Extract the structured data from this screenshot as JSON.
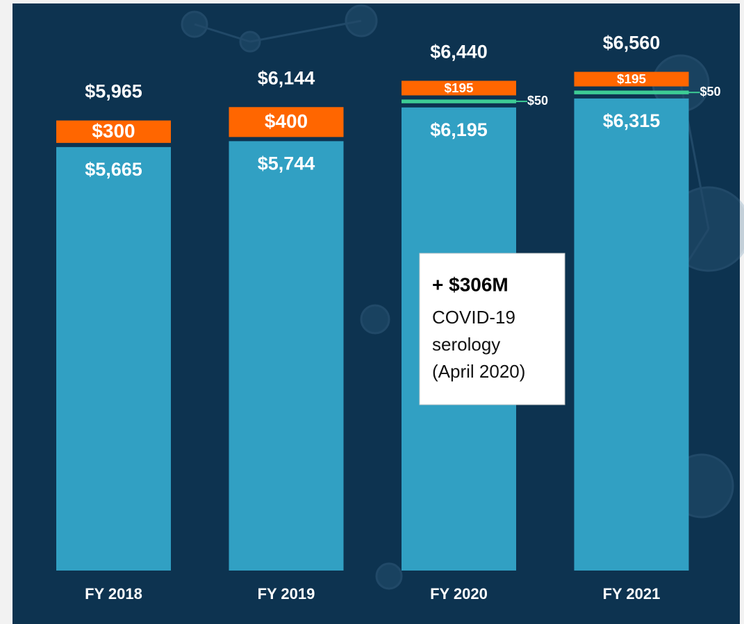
{
  "chart_data": {
    "type": "stacked-bar",
    "categories": [
      "FY 2018",
      "FY 2019",
      "FY 2020",
      "FY 2021"
    ],
    "series": [
      {
        "color": "#31a0c3",
        "values": [
          5665,
          5744,
          6195,
          6315
        ],
        "value_labels": [
          "$5,665",
          "$5,744",
          "$6,195",
          "$6,315"
        ]
      },
      {
        "color": "#3dcc95",
        "values": [
          null,
          null,
          50,
          50
        ],
        "value_labels": [
          null,
          null,
          "$50",
          "$50"
        ]
      },
      {
        "color": "#ff6600",
        "values": [
          300,
          400,
          195,
          195
        ],
        "value_labels": [
          "$300",
          "$400",
          "$195",
          "$195"
        ]
      }
    ],
    "totals": [
      5965,
      6144,
      6440,
      6560
    ],
    "total_labels": [
      "$5,965",
      "$6,144",
      "$6,440",
      "$6,560"
    ],
    "annotation": {
      "title": "+ $306M",
      "lines": [
        "COVID-19",
        "serology",
        "(April 2020)"
      ]
    }
  }
}
